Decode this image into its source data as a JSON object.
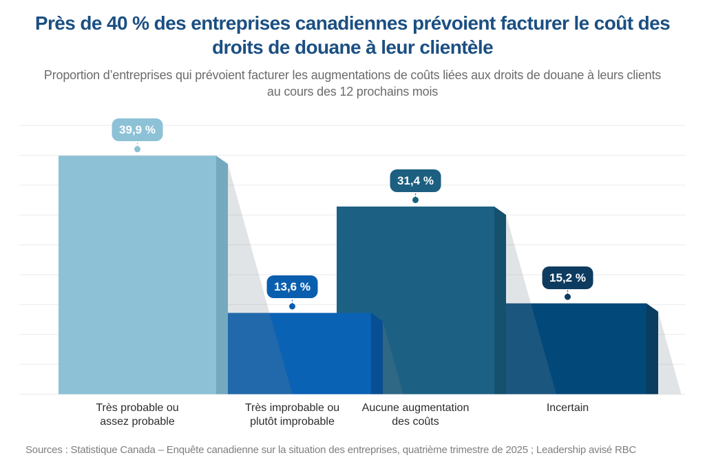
{
  "title": "Près de 40 % des entreprises canadiennes prévoient facturer le coût des droits de douane à leur clientèle",
  "subtitle": "Proportion d’entreprises qui prévoient facturer les augmentations de coûts liées aux droits de douane à leurs clients au cours des 12 prochains mois",
  "source": "Sources : Statistique Canada – Enquête canadienne sur la situation des entreprises, quatrième trimestre de 2025 ; Leadership avisé RBC",
  "colors": {
    "title_text": "#1B4F82",
    "subtitle_text": "#6B6B6B",
    "axis_label_text": "#2B2B2B",
    "source_text": "#7E7E7E",
    "gridline": "#EAEAEA",
    "value_label_text": "#FFFFFF",
    "bar_shadow": "rgba(120,132,142,0.22)"
  },
  "chart_data": {
    "type": "bar",
    "title": "Près de 40 % des entreprises canadiennes prévoient facturer le coût des droits de douane à leur clientèle",
    "subtitle": "Proportion d’entreprises qui prévoient facturer les augmentations de coûts liées aux droits de douane à leurs clients au cours des 12 prochains mois",
    "categories": [
      "Très probable ou assez probable",
      "Très improbable ou plutôt improbable",
      "Aucune augmentation des coûts",
      "Incertain"
    ],
    "category_lines": [
      [
        "Très probable ou",
        "assez probable"
      ],
      [
        "Très improbable ou",
        "plutôt improbable"
      ],
      [
        "Aucune augmentation",
        "des coûts"
      ],
      [
        "Incertain"
      ]
    ],
    "values": [
      39.9,
      13.6,
      31.4,
      15.2
    ],
    "value_labels": [
      "39,9 %",
      "13,6 %",
      "31,4 %",
      "15,2 %"
    ],
    "unit": "%",
    "ylim": [
      0,
      45
    ],
    "grid_step": 5,
    "grid": true,
    "legend": false,
    "bar_colors": [
      "#8CC1D6",
      "#0A62B4",
      "#1C6183",
      "#02497A"
    ],
    "bar_side_colors": [
      "#74A9BE",
      "#084E92",
      "#15506C",
      "#0A3D5F"
    ],
    "label_pill_colors": [
      "#8CC1D6",
      "#0A5EAE",
      "#1C5F80",
      "#0E3C60"
    ]
  }
}
